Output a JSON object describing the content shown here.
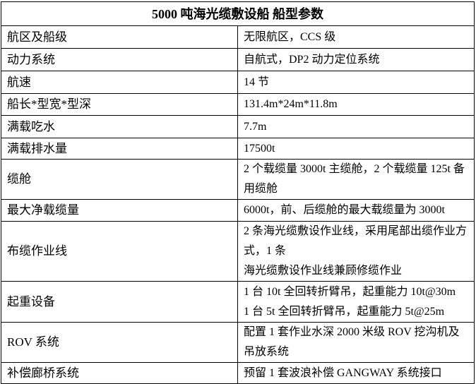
{
  "title": "5000 吨海光缆敷设船 船型参数",
  "rows": [
    {
      "label": "航区及船级",
      "value": [
        "无限航区，CCS 级"
      ]
    },
    {
      "label": "动力系统",
      "value": [
        "自航式，DP2 动力定位系统"
      ]
    },
    {
      "label": "航速",
      "value": [
        "14 节"
      ]
    },
    {
      "label": "船长*型宽*型深",
      "value": [
        "131.4m*24m*11.8m"
      ]
    },
    {
      "label": "满载吃水",
      "value": [
        "7.7m"
      ]
    },
    {
      "label": "满载排水量",
      "value": [
        "17500t"
      ]
    },
    {
      "label": "缆舱",
      "value": [
        "2 个载缆量 3000t 主缆舱，2 个载缆量 125t 备用缆舱"
      ]
    },
    {
      "label": "最大净载缆量",
      "value": [
        "6000t，前、后缆舱的最大载缆量为 3000t"
      ]
    },
    {
      "label": "布缆作业线",
      "value": [
        "2 条海光缆敷设作业线，采用尾部出缆作业方式，1 条",
        "海光缆敷设作业线兼顾修缆作业"
      ]
    },
    {
      "label": "起重设备",
      "value": [
        "1 台 10t 全回转折臂吊，起重能力 10t@30m",
        "1 台 5t 全回转折臂吊，起重能力 5t@25m"
      ]
    },
    {
      "label": "ROV 系统",
      "value": [
        "配置 1 套作业水深 2000 米级 ROV 挖沟机及吊放系统"
      ]
    },
    {
      "label": "补偿廊桥系统",
      "value": [
        "预留 1 套波浪补偿 GANGWAY 系统接口"
      ]
    }
  ]
}
